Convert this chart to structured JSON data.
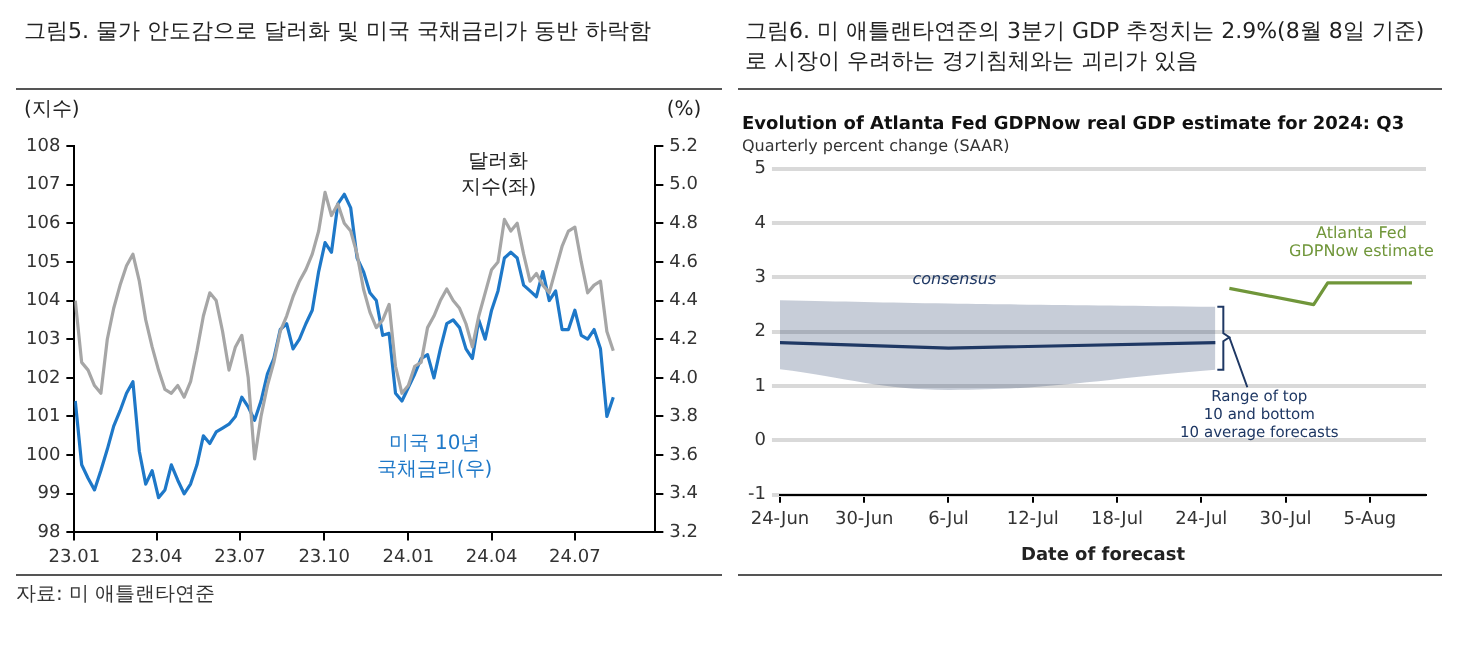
{
  "chart_data": [
    {
      "type": "line",
      "title": "그림5.  물가 안도감으로 달러화 및 미국 국채금리가 동반 하락함",
      "ylabel": "(지수)",
      "y2label": "(%)",
      "annotations": [
        "자료: 미 애틀랜타연준"
      ],
      "x": [
        "2023-01-02",
        "2023-01-09",
        "2023-01-16",
        "2023-01-23",
        "2023-01-30",
        "2023-02-06",
        "2023-02-13",
        "2023-02-20",
        "2023-02-27",
        "2023-03-06",
        "2023-03-13",
        "2023-03-20",
        "2023-03-27",
        "2023-04-03",
        "2023-04-10",
        "2023-04-17",
        "2023-04-24",
        "2023-05-01",
        "2023-05-08",
        "2023-05-15",
        "2023-05-22",
        "2023-05-29",
        "2023-06-05",
        "2023-06-12",
        "2023-06-19",
        "2023-06-26",
        "2023-07-03",
        "2023-07-10",
        "2023-07-17",
        "2023-07-24",
        "2023-07-31",
        "2023-08-07",
        "2023-08-14",
        "2023-08-21",
        "2023-08-28",
        "2023-09-04",
        "2023-09-11",
        "2023-09-18",
        "2023-09-25",
        "2023-10-02",
        "2023-10-09",
        "2023-10-16",
        "2023-10-23",
        "2023-10-30",
        "2023-11-06",
        "2023-11-13",
        "2023-11-20",
        "2023-11-27",
        "2023-12-04",
        "2023-12-11",
        "2023-12-18",
        "2023-12-25",
        "2024-01-01",
        "2024-01-08",
        "2024-01-15",
        "2024-01-22",
        "2024-01-29",
        "2024-02-05",
        "2024-02-12",
        "2024-02-19",
        "2024-02-26",
        "2024-03-04",
        "2024-03-11",
        "2024-03-18",
        "2024-03-25",
        "2024-04-01",
        "2024-04-08",
        "2024-04-15",
        "2024-04-22",
        "2024-04-29",
        "2024-05-06",
        "2024-05-13",
        "2024-05-20",
        "2024-05-27",
        "2024-06-03",
        "2024-06-10",
        "2024-06-17",
        "2024-06-24",
        "2024-07-01",
        "2024-07-08",
        "2024-07-15",
        "2024-07-22",
        "2024-07-29",
        "2024-08-05",
        "2024-08-12"
      ],
      "series": [
        {
          "name": "달러화 지수(좌)",
          "color": "#a6a6a6",
          "values": [
            104.0,
            102.4,
            102.2,
            101.8,
            101.6,
            103.0,
            103.8,
            104.4,
            104.9,
            105.2,
            104.5,
            103.5,
            102.8,
            102.2,
            101.7,
            101.6,
            101.8,
            101.5,
            101.9,
            102.7,
            103.6,
            104.2,
            104.0,
            103.2,
            102.2,
            102.8,
            103.1,
            102.0,
            99.9,
            101.0,
            101.8,
            102.4,
            103.2,
            103.6,
            104.1,
            104.5,
            104.8,
            105.2,
            105.8,
            106.8,
            106.2,
            106.5,
            106.0,
            105.8,
            105.2,
            104.3,
            103.7,
            103.3,
            103.5,
            103.9,
            102.3,
            101.6,
            101.8,
            102.3,
            102.4,
            103.3,
            103.6,
            104.0,
            104.3,
            104.0,
            103.8,
            103.4,
            102.8,
            103.6,
            104.2,
            104.8,
            105.0,
            106.1,
            105.8,
            106.0,
            105.2,
            104.5,
            104.7,
            104.4,
            104.2,
            104.8,
            105.4,
            105.8,
            105.9,
            105.0,
            104.2,
            104.4,
            104.5,
            103.2,
            102.7
          ]
        },
        {
          "name": "미국 10년 국채금리(우)",
          "color": "#1e78c8",
          "axis": "y2",
          "values": [
            3.88,
            3.55,
            3.48,
            3.42,
            3.52,
            3.63,
            3.75,
            3.83,
            3.92,
            3.98,
            3.62,
            3.45,
            3.52,
            3.38,
            3.42,
            3.55,
            3.47,
            3.4,
            3.45,
            3.55,
            3.7,
            3.66,
            3.72,
            3.74,
            3.76,
            3.8,
            3.9,
            3.85,
            3.78,
            3.88,
            4.02,
            4.1,
            4.25,
            4.28,
            4.15,
            4.2,
            4.28,
            4.35,
            4.55,
            4.7,
            4.65,
            4.9,
            4.95,
            4.88,
            4.62,
            4.55,
            4.44,
            4.4,
            4.22,
            4.23,
            3.92,
            3.88,
            3.95,
            4.02,
            4.1,
            4.12,
            4.0,
            4.15,
            4.28,
            4.3,
            4.26,
            4.15,
            4.1,
            4.3,
            4.2,
            4.35,
            4.45,
            4.62,
            4.65,
            4.62,
            4.48,
            4.45,
            4.42,
            4.55,
            4.4,
            4.45,
            4.25,
            4.25,
            4.35,
            4.22,
            4.2,
            4.25,
            4.15,
            3.8,
            3.9
          ]
        }
      ],
      "xlim": [
        "2023-01-01",
        "2024-09-27"
      ],
      "xticks": [
        {
          "value": "2023-01",
          "label": "23.01"
        },
        {
          "value": "2023-04",
          "label": "23.04"
        },
        {
          "value": "2023-07",
          "label": "23.07"
        },
        {
          "value": "2023-10",
          "label": "23.10"
        },
        {
          "value": "2024-01",
          "label": "24.01"
        },
        {
          "value": "2024-04",
          "label": "24.04"
        },
        {
          "value": "2024-07",
          "label": "24.07"
        }
      ],
      "ylim": [
        98,
        108
      ],
      "yticks": [
        98,
        99,
        100,
        101,
        102,
        103,
        104,
        105,
        106,
        107,
        108
      ],
      "y2lim": [
        3.2,
        5.2
      ],
      "y2ticks": [
        3.2,
        3.4,
        3.6,
        3.8,
        {
          "value": 4,
          "label": "4.0"
        },
        4.2,
        4.4,
        4.6,
        4.8,
        {
          "value": 5,
          "label": "5.0"
        },
        5.2
      ],
      "grid": false,
      "legend": false
    },
    {
      "type": "line",
      "title": "그림6.  미 애틀랜타연준의 3분기 GDP 추정치는 2.9%(8월 8일 기준)로 시장이 우려하는 경기침체와는 괴리가 있음",
      "subtitle": "Evolution of Atlanta Fed GDPNow real GDP estimate for 2024: Q3",
      "xlabel": "Date of forecast",
      "annotations": [
        "Quarterly percent change (SAAR)",
        {
          "text": "Range of top 10 and bottom 10 average forecasts",
          "x": "--07-25",
          "y": 1.9
        }
      ],
      "series": [
        {
          "name": "consensus",
          "color": "#1f3864",
          "x": [
            "--06-24",
            "--07-06",
            "--07-25"
          ],
          "values": [
            1.8,
            1.7,
            1.8
          ],
          "lower": [
            1.31,
            0.93,
            1.3
          ],
          "upper": [
            2.58,
            2.52,
            2.46
          ]
        },
        {
          "name": "Atlanta Fed GDPNow estimate",
          "color": "#70963a",
          "x": [
            "--07-26",
            "--08-01",
            "--08-02",
            "--08-08"
          ],
          "values": [
            2.8,
            2.5,
            2.9,
            2.9
          ]
        }
      ],
      "xlim": [
        "--06-24",
        "--08-09"
      ],
      "xticks": [
        {
          "value": "--06-24",
          "label": "24-Jun"
        },
        {
          "value": "--06-30",
          "label": "30-Jun"
        },
        {
          "value": "--07-06",
          "label": "6-Jul"
        },
        {
          "value": "--07-12",
          "label": "12-Jul"
        },
        {
          "value": "--07-18",
          "label": "18-Jul"
        },
        {
          "value": "--07-24",
          "label": "24-Jul"
        },
        {
          "value": "--07-30",
          "label": "30-Jul"
        },
        {
          "value": "--08-05",
          "label": "5-Aug"
        }
      ],
      "ylim": [
        -1,
        5
      ],
      "yticks": [
        -1,
        0,
        1,
        2,
        3,
        4,
        5
      ],
      "grid": "y",
      "legend": false
    }
  ]
}
